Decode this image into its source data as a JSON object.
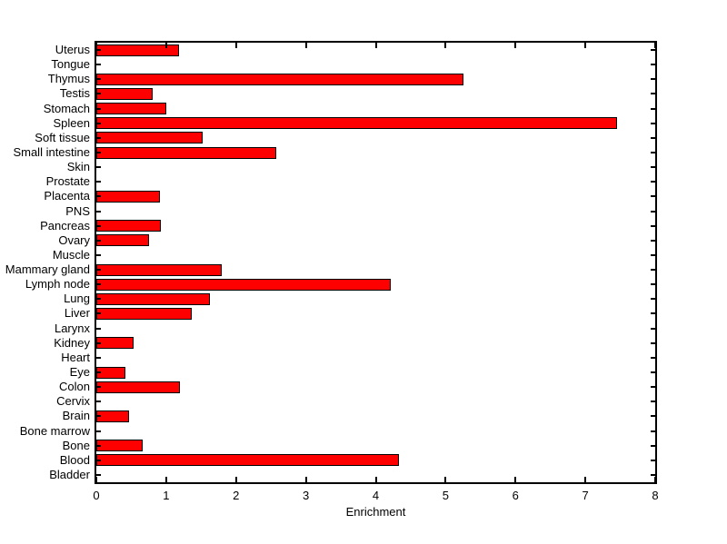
{
  "figure": {
    "background_color": "#ffffff",
    "axis_color": "#000000",
    "bar_fill_color": "#ff0000",
    "bar_edge_color": "#000000",
    "text_color": "#000000"
  },
  "chart_data": {
    "type": "bar",
    "orientation": "horizontal",
    "title": "",
    "xlabel": "Enrichment",
    "ylabel": "",
    "xlim": [
      0,
      8
    ],
    "xticks": [
      0,
      1,
      2,
      3,
      4,
      5,
      6,
      7,
      8
    ],
    "grid": false,
    "legend": false,
    "categories_top_to_bottom": [
      "Uterus",
      "Tongue",
      "Thymus",
      "Testis",
      "Stomach",
      "Spleen",
      "Soft tissue",
      "Small intestine",
      "Skin",
      "Prostate",
      "Placenta",
      "PNS",
      "Pancreas",
      "Ovary",
      "Muscle",
      "Mammary gland",
      "Lymph node",
      "Lung",
      "Liver",
      "Larynx",
      "Kidney",
      "Heart",
      "Eye",
      "Colon",
      "Cervix",
      "Brain",
      "Bone marrow",
      "Bone",
      "Blood",
      "Bladder"
    ],
    "values": [
      1.19,
      0,
      5.26,
      0.8,
      1.0,
      7.45,
      1.52,
      2.57,
      0,
      0,
      0.91,
      0,
      0.92,
      0.76,
      0,
      1.8,
      4.22,
      1.63,
      1.37,
      0,
      0.53,
      0,
      0.42,
      1.2,
      0,
      0.47,
      0,
      0.66,
      4.33,
      0
    ]
  }
}
